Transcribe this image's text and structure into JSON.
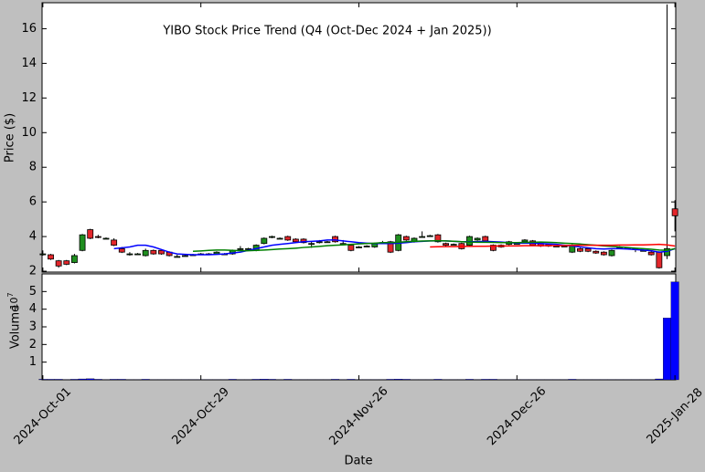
{
  "chart_data": [
    {
      "type": "candlestick",
      "title": "YIBO Stock Price Trend (Q4 (Oct-Dec 2024 + Jan 2025))",
      "ylabel": "Price ($)",
      "xlim": [
        -0.1,
        80.1
      ],
      "ylim": [
        1.95,
        17.5
      ],
      "yticks": [
        2,
        4,
        6,
        8,
        10,
        12,
        14,
        16
      ],
      "up_color": "#1f8f1f",
      "down_color": "#e3262b",
      "edge_color": "#000000",
      "open": [
        3.0,
        2.95,
        2.6,
        2.6,
        2.5,
        3.2,
        4.4,
        4.0,
        3.9,
        3.8,
        3.3,
        3.0,
        3.0,
        2.9,
        3.2,
        3.2,
        3.1,
        2.85,
        2.9,
        2.95,
        3.0,
        3.0,
        3.0,
        3.0,
        3.0,
        3.3,
        3.3,
        3.2,
        3.6,
        4.0,
        3.9,
        4.0,
        3.85,
        3.85,
        3.6,
        3.7,
        3.7,
        4.0,
        3.6,
        3.5,
        3.4,
        3.45,
        3.4,
        3.65,
        3.7,
        3.2,
        4.0,
        3.7,
        4.0,
        4.05,
        4.1,
        3.6,
        3.55,
        3.6,
        3.5,
        3.8,
        4.0,
        3.5,
        3.5,
        3.55,
        3.6,
        3.7,
        3.75,
        3.6,
        3.55,
        3.45,
        3.45,
        3.1,
        3.3,
        3.3,
        3.15,
        3.1,
        2.9,
        3.4,
        3.35,
        3.3,
        3.2,
        3.1,
        3.1,
        2.9,
        5.6
      ],
      "high": [
        3.2,
        3.0,
        2.65,
        2.65,
        3.0,
        4.15,
        4.45,
        4.1,
        3.95,
        3.9,
        3.4,
        3.1,
        3.05,
        3.3,
        3.25,
        3.25,
        3.15,
        2.95,
        2.95,
        3.0,
        3.05,
        3.05,
        3.15,
        3.05,
        3.25,
        3.45,
        3.35,
        3.55,
        3.95,
        4.05,
        3.95,
        4.05,
        3.9,
        3.9,
        3.7,
        3.8,
        3.75,
        4.05,
        3.8,
        3.55,
        3.45,
        3.5,
        3.65,
        3.75,
        3.75,
        4.15,
        4.05,
        3.95,
        4.3,
        4.1,
        4.15,
        3.65,
        3.6,
        3.65,
        4.05,
        3.95,
        4.05,
        3.55,
        3.55,
        3.75,
        3.65,
        3.85,
        3.8,
        3.65,
        3.6,
        3.5,
        3.5,
        3.55,
        3.35,
        3.35,
        3.2,
        3.15,
        3.25,
        3.45,
        3.4,
        3.35,
        3.25,
        3.15,
        3.15,
        17.4,
        6.1
      ],
      "low": [
        2.9,
        2.65,
        2.2,
        2.35,
        2.45,
        3.15,
        3.85,
        3.9,
        3.85,
        3.45,
        3.05,
        2.9,
        2.95,
        2.85,
        2.95,
        2.95,
        2.85,
        2.8,
        2.85,
        2.9,
        2.95,
        2.95,
        2.95,
        2.95,
        2.95,
        3.2,
        3.25,
        3.15,
        3.55,
        3.9,
        3.85,
        3.75,
        3.65,
        3.6,
        3.35,
        3.6,
        3.65,
        3.65,
        3.5,
        3.15,
        3.35,
        3.4,
        3.35,
        3.6,
        3.05,
        3.15,
        3.75,
        3.65,
        3.95,
        4.0,
        3.65,
        3.45,
        3.5,
        3.25,
        3.45,
        3.75,
        3.7,
        3.15,
        3.35,
        3.5,
        3.55,
        3.65,
        3.45,
        3.4,
        3.4,
        3.4,
        3.4,
        3.05,
        3.1,
        3.1,
        3.0,
        2.9,
        2.85,
        3.35,
        3.3,
        3.1,
        3.15,
        2.9,
        2.15,
        2.7,
        4.3
      ],
      "close": [
        3.0,
        2.7,
        2.3,
        2.4,
        2.9,
        4.1,
        3.9,
        3.95,
        3.9,
        3.5,
        3.1,
        3.0,
        3.0,
        3.2,
        3.0,
        3.0,
        2.9,
        2.85,
        2.9,
        2.95,
        3.0,
        3.0,
        3.1,
        3.0,
        3.2,
        3.3,
        3.3,
        3.5,
        3.9,
        4.0,
        3.9,
        3.8,
        3.7,
        3.65,
        3.6,
        3.7,
        3.7,
        3.7,
        3.6,
        3.2,
        3.4,
        3.45,
        3.6,
        3.65,
        3.1,
        4.1,
        3.8,
        3.9,
        4.0,
        4.05,
        3.7,
        3.5,
        3.55,
        3.3,
        4.0,
        3.9,
        3.75,
        3.2,
        3.4,
        3.7,
        3.6,
        3.8,
        3.5,
        3.45,
        3.45,
        3.45,
        3.45,
        3.5,
        3.15,
        3.15,
        3.05,
        2.95,
        3.2,
        3.4,
        3.35,
        3.3,
        3.2,
        2.95,
        2.2,
        3.3,
        5.2
      ],
      "series": [
        {
          "color": "#0000ff",
          "values": [
            null,
            null,
            null,
            null,
            null,
            null,
            null,
            null,
            null,
            3.3,
            3.35,
            3.4,
            3.5,
            3.5,
            3.4,
            3.25,
            3.1,
            3.0,
            2.97,
            2.95,
            2.95,
            2.95,
            2.97,
            3.0,
            3.05,
            3.1,
            3.2,
            3.3,
            3.4,
            3.5,
            3.55,
            3.6,
            3.65,
            3.7,
            3.72,
            3.75,
            3.8,
            3.8,
            3.75,
            3.7,
            3.65,
            3.62,
            3.6,
            3.6,
            3.6,
            3.62,
            3.65,
            3.7,
            3.72,
            3.75,
            3.75,
            3.75,
            3.72,
            3.7,
            3.7,
            3.7,
            3.72,
            3.7,
            3.68,
            3.65,
            3.62,
            3.62,
            3.62,
            3.6,
            3.58,
            3.55,
            3.5,
            3.45,
            3.4,
            3.35,
            3.3,
            3.28,
            3.3,
            3.3,
            3.28,
            3.25,
            3.22,
            3.18,
            3.1,
            3.15,
            3.3
          ]
        },
        {
          "color": "#008000",
          "values": [
            null,
            null,
            null,
            null,
            null,
            null,
            null,
            null,
            null,
            null,
            null,
            null,
            null,
            null,
            null,
            null,
            null,
            null,
            null,
            3.15,
            3.17,
            3.2,
            3.22,
            3.22,
            3.2,
            3.18,
            3.18,
            3.2,
            3.22,
            3.25,
            3.28,
            3.3,
            3.33,
            3.37,
            3.4,
            3.43,
            3.47,
            3.5,
            3.52,
            3.55,
            3.58,
            3.6,
            3.62,
            3.65,
            3.65,
            3.67,
            3.7,
            3.72,
            3.74,
            3.75,
            3.76,
            3.75,
            3.73,
            3.7,
            3.68,
            3.67,
            3.67,
            3.66,
            3.65,
            3.65,
            3.65,
            3.66,
            3.67,
            3.68,
            3.67,
            3.65,
            3.62,
            3.6,
            3.57,
            3.53,
            3.5,
            3.46,
            3.43,
            3.4,
            3.37,
            3.33,
            3.3,
            3.27,
            3.22,
            3.2,
            3.3
          ]
        },
        {
          "color": "#ff0000",
          "values": [
            null,
            null,
            null,
            null,
            null,
            null,
            null,
            null,
            null,
            null,
            null,
            null,
            null,
            null,
            null,
            null,
            null,
            null,
            null,
            null,
            null,
            null,
            null,
            null,
            null,
            null,
            null,
            null,
            null,
            null,
            null,
            null,
            null,
            null,
            null,
            null,
            null,
            null,
            null,
            null,
            null,
            null,
            null,
            null,
            null,
            null,
            null,
            null,
            null,
            3.4,
            3.41,
            3.42,
            3.42,
            3.43,
            3.43,
            3.44,
            3.44,
            3.45,
            3.45,
            3.46,
            3.46,
            3.47,
            3.47,
            3.47,
            3.48,
            3.48,
            3.48,
            3.49,
            3.5,
            3.5,
            3.5,
            3.5,
            3.5,
            3.51,
            3.51,
            3.52,
            3.52,
            3.53,
            3.55,
            3.52,
            3.45
          ]
        }
      ]
    },
    {
      "type": "bar",
      "ylabel": "Volume",
      "xlabel": "Date",
      "offset_text": {
        "base": "10",
        "exponent": "7"
      },
      "color": "#0000ff",
      "xlim": [
        -0.1,
        80.1
      ],
      "ylim": [
        0,
        6
      ],
      "yticks": [
        1,
        2,
        3,
        4,
        5
      ],
      "categories": [
        "2024-Oct-01",
        null,
        null,
        null,
        null,
        null,
        null,
        null,
        null,
        null,
        null,
        null,
        null,
        null,
        null,
        null,
        null,
        null,
        null,
        null,
        "2024-Oct-29",
        null,
        null,
        null,
        null,
        null,
        null,
        null,
        null,
        null,
        null,
        null,
        null,
        null,
        null,
        null,
        null,
        null,
        null,
        null,
        "2024-Nov-26",
        null,
        null,
        null,
        null,
        null,
        null,
        null,
        null,
        null,
        null,
        null,
        null,
        null,
        null,
        null,
        null,
        null,
        null,
        null,
        "2024-Dec-26",
        null,
        null,
        null,
        null,
        null,
        null,
        null,
        null,
        null,
        null,
        null,
        null,
        null,
        null,
        null,
        null,
        null,
        null,
        null,
        "2025-Jan-28"
      ],
      "values": [
        0.03,
        0.03,
        0.03,
        0.02,
        0.03,
        0.05,
        0.06,
        0.03,
        0.02,
        0.03,
        0.03,
        0.02,
        0.02,
        0.03,
        0.02,
        0.02,
        0.02,
        0.02,
        0.02,
        0.02,
        0.02,
        0.02,
        0.02,
        0.02,
        0.03,
        0.02,
        0.02,
        0.03,
        0.04,
        0.03,
        0.02,
        0.03,
        0.02,
        0.02,
        0.02,
        0.02,
        0.02,
        0.03,
        0.02,
        0.03,
        0.02,
        0.02,
        0.02,
        0.02,
        0.03,
        0.04,
        0.03,
        0.02,
        0.02,
        0.02,
        0.03,
        0.02,
        0.02,
        0.02,
        0.03,
        0.02,
        0.03,
        0.03,
        0.02,
        0.02,
        0.02,
        0.02,
        0.02,
        0.02,
        0.02,
        0.02,
        0.02,
        0.03,
        0.02,
        0.02,
        0.02,
        0.02,
        0.02,
        0.02,
        0.02,
        0.02,
        0.02,
        0.02,
        0.05,
        3.5,
        5.55
      ]
    }
  ]
}
